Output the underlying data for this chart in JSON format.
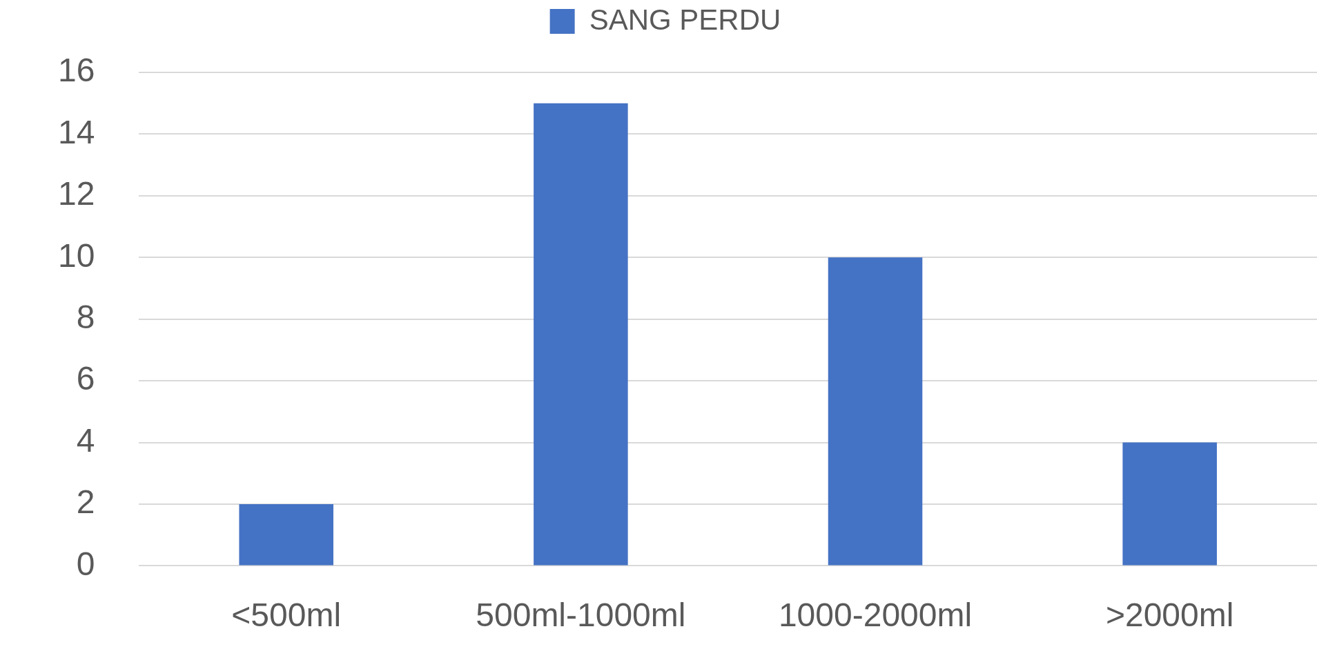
{
  "chart_data": {
    "type": "bar",
    "categories": [
      "<500ml",
      "500ml-1000ml",
      "1000-2000ml",
      ">2000ml"
    ],
    "series": [
      {
        "name": "SANG PERDU",
        "color": "#4472c4",
        "values": [
          2,
          15,
          10,
          4
        ]
      }
    ],
    "ylim": [
      0,
      16
    ],
    "yticks": [
      0,
      2,
      4,
      6,
      8,
      10,
      12,
      14,
      16
    ],
    "grid": "y",
    "legend": "top"
  }
}
